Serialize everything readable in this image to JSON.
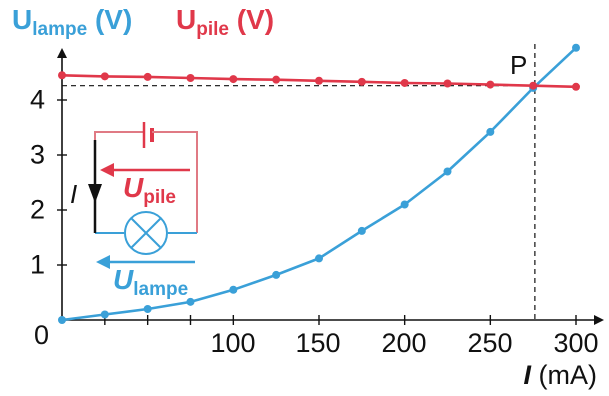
{
  "chart_data": {
    "type": "scatter",
    "xlabel": {
      "symbol": "I",
      "unit": "(mA)"
    },
    "ylabels": [
      {
        "symbol": "U",
        "sub": "lampe",
        "unit": "(V)",
        "color": "#3aa0d8"
      },
      {
        "symbol": "U",
        "sub": "pile",
        "unit": "(V)",
        "color": "#e0384a"
      }
    ],
    "origin_label": "0",
    "xlim": [
      0,
      300
    ],
    "ylim": [
      0,
      4.9
    ],
    "x_ticks": [
      "100",
      "150",
      "200",
      "250",
      "300"
    ],
    "x_tick_values": [
      100,
      150,
      200,
      250,
      300
    ],
    "y_ticks": [
      "1",
      "2",
      "3",
      "4"
    ],
    "y_tick_values": [
      1,
      2,
      3,
      4
    ],
    "series": [
      {
        "name": "Ulampe",
        "color": "#3aa0d8",
        "x": [
          0,
          25,
          50,
          75,
          100,
          125,
          150,
          175,
          200,
          225,
          250,
          275,
          300
        ],
        "y": [
          0.0,
          0.1,
          0.2,
          0.33,
          0.55,
          0.82,
          1.12,
          1.62,
          2.1,
          2.7,
          3.42,
          4.22,
          4.95
        ]
      },
      {
        "name": "Upile",
        "color": "#e0384a",
        "x": [
          0,
          25,
          50,
          75,
          100,
          125,
          150,
          175,
          200,
          225,
          250,
          275,
          300
        ],
        "y": [
          4.45,
          4.43,
          4.42,
          4.4,
          4.38,
          4.37,
          4.35,
          4.33,
          4.31,
          4.3,
          4.28,
          4.26,
          4.24
        ]
      }
    ],
    "intersection": {
      "label": "P",
      "x": 276,
      "y": 4.26
    }
  },
  "inset": {
    "current_label": "I",
    "upile_label": {
      "symbol": "U",
      "sub": "pile"
    },
    "ulampe_label": {
      "symbol": "U",
      "sub": "lampe"
    }
  }
}
